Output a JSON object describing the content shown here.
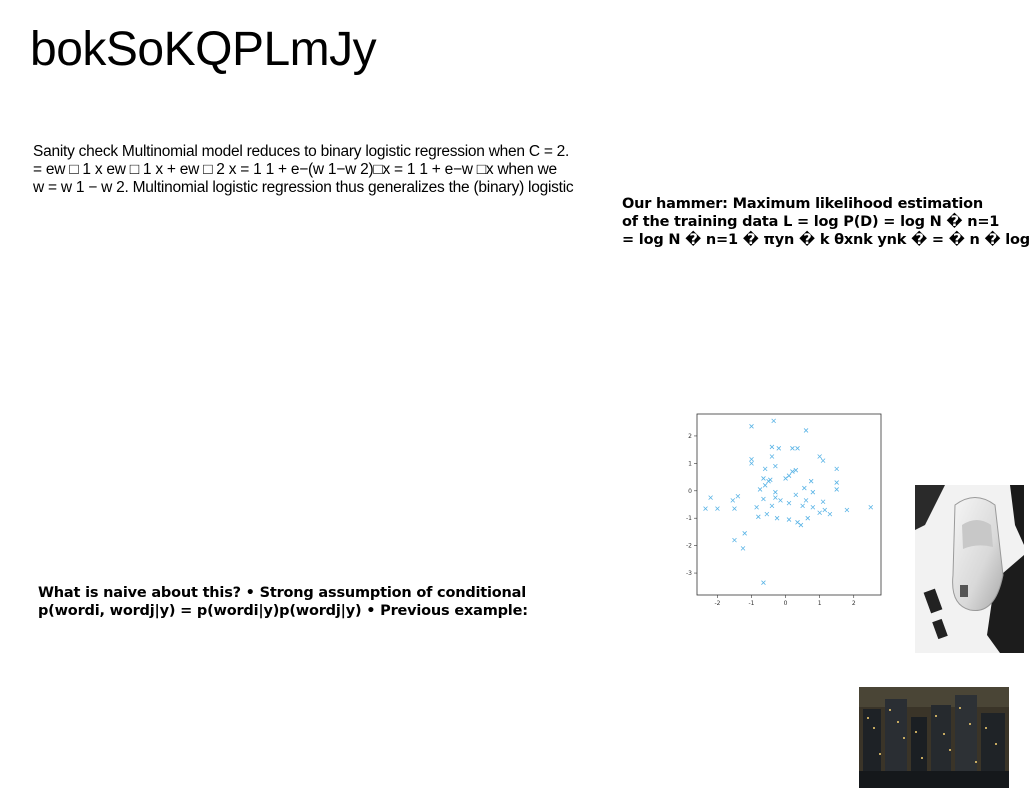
{
  "title": "bokSoKQPLmJy",
  "block_a": {
    "lines": [
      "Sanity check Multinomial model reduces to binary logistic regression when C = 2.",
      "= ew □ 1 x ew □ 1 x + ew □ 2 x = 1 1 + e−(w 1−w 2)□x = 1 1 + e−w □x when we",
      "w = w 1 − w 2. Multinomial logistic regression thus generalizes the (binary) logistic"
    ]
  },
  "block_b": {
    "lines": [
      "Our hammer: Maximum likelihood estimation",
      "of the training data L = log P(D) = log N � n=1",
      "= log N � n=1 � πyn � k θxnk ynk � = � n � log"
    ]
  },
  "block_c": {
    "lines": [
      "What is naive about this? • Strong assumption of conditional",
      "p(wordi, wordj|y) = p(wordi|y)p(wordj|y) • Previous example:"
    ]
  },
  "chart_data": {
    "type": "scatter",
    "marker": "x",
    "color": "#5ab4e6",
    "xlim": [
      -2.6,
      2.8
    ],
    "ylim": [
      -3.8,
      2.8
    ],
    "xticks": [
      "-2",
      "-1",
      "0",
      "1",
      "2"
    ],
    "yticks": [
      "2",
      "1",
      "0",
      "-1",
      "-2",
      "-3"
    ],
    "points": [
      [
        -0.35,
        2.55
      ],
      [
        -1.0,
        2.35
      ],
      [
        0.6,
        2.2
      ],
      [
        -0.4,
        1.6
      ],
      [
        -0.2,
        1.55
      ],
      [
        0.2,
        1.55
      ],
      [
        0.35,
        1.55
      ],
      [
        -1.0,
        1.15
      ],
      [
        -0.4,
        1.25
      ],
      [
        1.0,
        1.25
      ],
      [
        -1.0,
        1.0
      ],
      [
        -0.6,
        0.8
      ],
      [
        -0.3,
        0.9
      ],
      [
        0.2,
        0.7
      ],
      [
        1.1,
        1.1
      ],
      [
        1.5,
        0.8
      ],
      [
        -0.65,
        0.45
      ],
      [
        -0.5,
        0.35
      ],
      [
        0.0,
        0.45
      ],
      [
        0.1,
        0.55
      ],
      [
        0.3,
        0.75
      ],
      [
        -0.6,
        0.2
      ],
      [
        -0.45,
        0.4
      ],
      [
        0.75,
        0.35
      ],
      [
        1.5,
        0.3
      ],
      [
        -0.75,
        0.05
      ],
      [
        -0.3,
        -0.05
      ],
      [
        0.55,
        0.1
      ],
      [
        0.8,
        -0.05
      ],
      [
        1.5,
        0.05
      ],
      [
        -2.2,
        -0.25
      ],
      [
        -1.4,
        -0.2
      ],
      [
        -1.55,
        -0.35
      ],
      [
        -0.65,
        -0.3
      ],
      [
        -0.3,
        -0.25
      ],
      [
        -0.15,
        -0.35
      ],
      [
        0.3,
        -0.15
      ],
      [
        0.6,
        -0.35
      ],
      [
        1.1,
        -0.4
      ],
      [
        -2.35,
        -0.65
      ],
      [
        -2.0,
        -0.65
      ],
      [
        -1.5,
        -0.65
      ],
      [
        -0.85,
        -0.6
      ],
      [
        -0.4,
        -0.55
      ],
      [
        0.1,
        -0.45
      ],
      [
        0.5,
        -0.55
      ],
      [
        0.8,
        -0.6
      ],
      [
        1.15,
        -0.7
      ],
      [
        1.8,
        -0.7
      ],
      [
        2.5,
        -0.6
      ],
      [
        -0.8,
        -0.95
      ],
      [
        -0.55,
        -0.85
      ],
      [
        -0.25,
        -1.0
      ],
      [
        0.1,
        -1.05
      ],
      [
        0.35,
        -1.15
      ],
      [
        0.65,
        -1.0
      ],
      [
        1.0,
        -0.8
      ],
      [
        1.3,
        -0.85
      ],
      [
        -1.2,
        -1.55
      ],
      [
        -1.5,
        -1.8
      ],
      [
        -1.25,
        -2.1
      ],
      [
        0.45,
        -1.25
      ],
      [
        -0.65,
        -3.35
      ]
    ]
  },
  "images": {
    "scatter_plot": "scatter-plot-image",
    "car_photo": "toy-car-photo",
    "city_photo": "night-city-photo"
  }
}
